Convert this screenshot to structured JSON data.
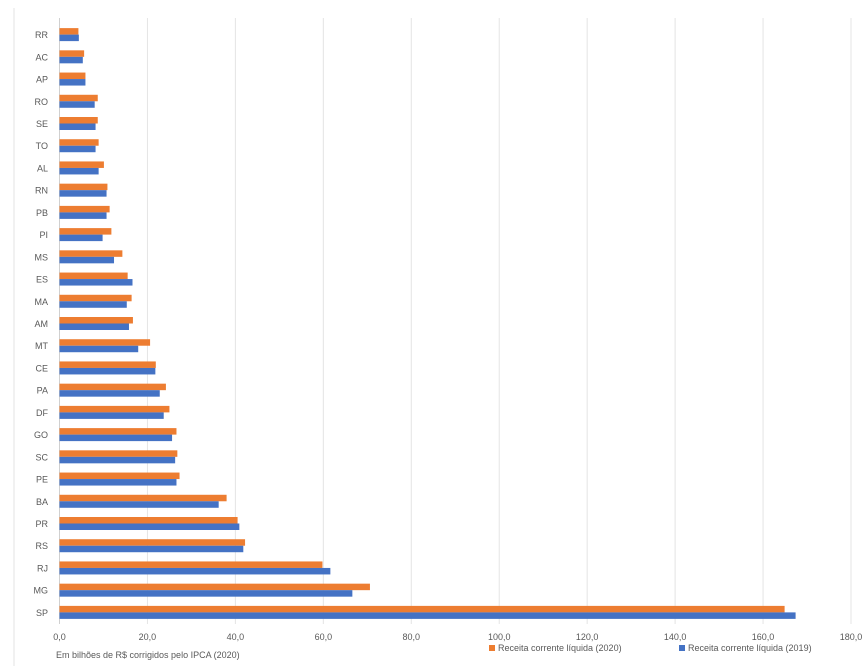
{
  "chart_data": {
    "type": "bar",
    "orientation": "horizontal",
    "title": "",
    "xlabel": "Em bilhões de R$ corrigidos pelo IPCA (2020)",
    "ylabel": "",
    "xlim": [
      0,
      180
    ],
    "x_ticks": [
      "0,0",
      "20,0",
      "40,0",
      "60,0",
      "80,0",
      "100,0",
      "120,0",
      "140,0",
      "160,0",
      "180,0"
    ],
    "x_tick_values": [
      0,
      20,
      40,
      60,
      80,
      100,
      120,
      140,
      160,
      180
    ],
    "grid": true,
    "legend_position": "bottom-right",
    "categories": [
      "RR",
      "AC",
      "AP",
      "RO",
      "SE",
      "TO",
      "AL",
      "RN",
      "PB",
      "PI",
      "MS",
      "ES",
      "MA",
      "AM",
      "MT",
      "CE",
      "PA",
      "DF",
      "GO",
      "SC",
      "PE",
      "BA",
      "PR",
      "RS",
      "RJ",
      "MG",
      "SP"
    ],
    "series": [
      {
        "name": "Receita corrente líquida (2020)",
        "color": "#ED7D31",
        "values": [
          4.3,
          5.6,
          5.9,
          8.7,
          8.7,
          8.9,
          10.1,
          10.9,
          11.4,
          11.8,
          14.3,
          15.5,
          16.4,
          16.7,
          20.6,
          21.9,
          24.2,
          25.0,
          26.6,
          26.8,
          27.3,
          38.0,
          40.5,
          42.2,
          59.8,
          70.6,
          164.9
        ]
      },
      {
        "name": "Receita corrente líquida (2019)",
        "color": "#4472C4",
        "values": [
          4.4,
          5.3,
          5.9,
          8.0,
          8.2,
          8.2,
          8.9,
          10.7,
          10.7,
          9.8,
          12.4,
          16.6,
          15.3,
          15.8,
          17.9,
          21.8,
          22.8,
          23.7,
          25.6,
          26.3,
          26.6,
          36.2,
          40.9,
          41.8,
          61.6,
          66.6,
          167.4
        ]
      }
    ]
  }
}
